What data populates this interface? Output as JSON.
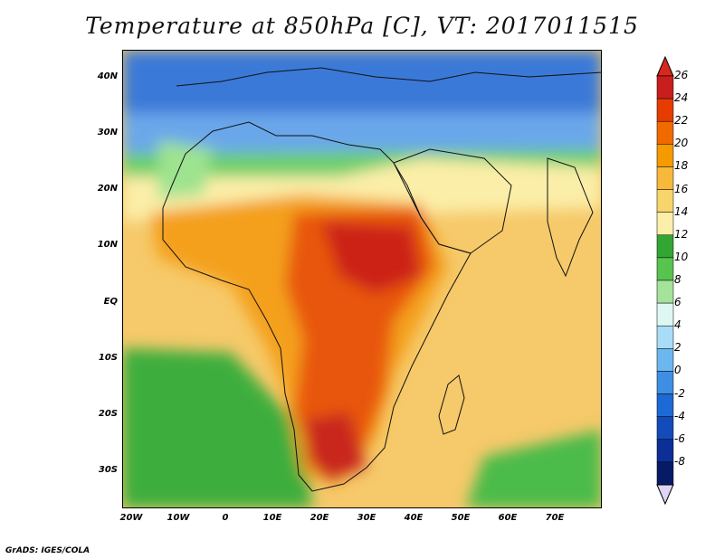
{
  "title": "Temperature at 850hPa [C], VT: 2017011515",
  "credit": "GrADS: IGES/COLA",
  "lat_labels": [
    "40N",
    "30N",
    "20N",
    "10N",
    "EQ",
    "10S",
    "20S",
    "30S"
  ],
  "lon_labels": [
    "20W",
    "10W",
    "0",
    "10E",
    "20E",
    "30E",
    "40E",
    "50E",
    "60E",
    "70E"
  ],
  "colorbar": {
    "labels": [
      "26",
      "24",
      "22",
      "20",
      "18",
      "16",
      "14",
      "12",
      "10",
      "8",
      "6",
      "4",
      "2",
      "0",
      "-2",
      "-4",
      "-6",
      "-8"
    ],
    "colors_top_to_bottom": [
      "#c81e1e",
      "#e63c00",
      "#f06a00",
      "#f59a00",
      "#f8b83a",
      "#f8d56a",
      "#fbeea8",
      "#33a532",
      "#56c44e",
      "#a4e39a",
      "#dff7f2",
      "#a9dcf6",
      "#6cb7f0",
      "#3e8fe3",
      "#1d69d6",
      "#134cba",
      "#0b2f96",
      "#071a66"
    ],
    "overflow_top_color": "#d8281e",
    "underflow_bottom_color": "#ddd6f4"
  },
  "map_extent": {
    "lon": [
      -23,
      80
    ],
    "lat": [
      -37,
      45
    ]
  }
}
